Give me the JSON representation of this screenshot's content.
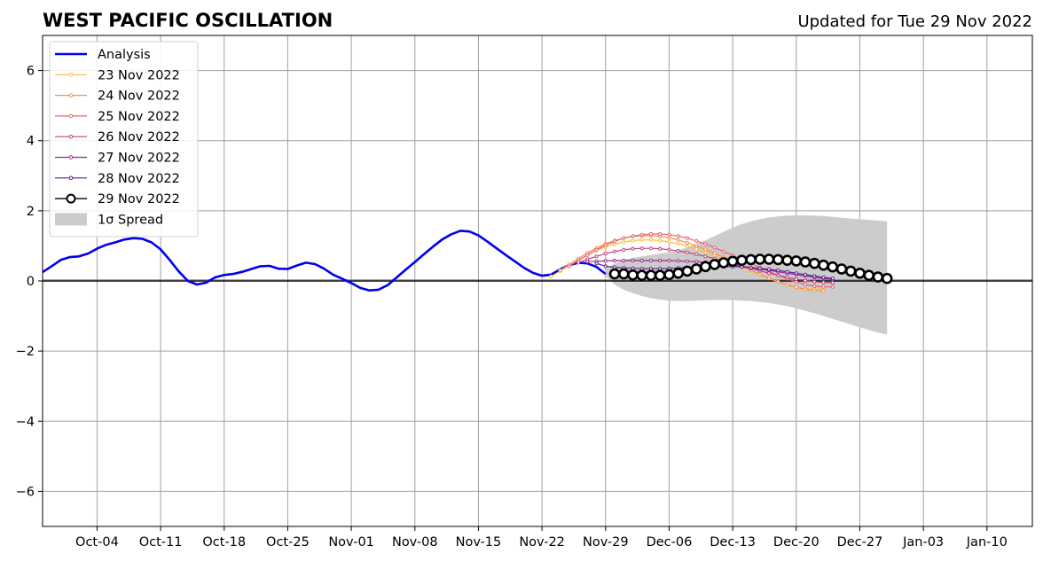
{
  "chart_data": {
    "type": "line",
    "title": "WEST PACIFIC OSCILLATION",
    "subtitle": "Updated for Tue 29 Nov 2022",
    "xlabel": "",
    "ylabel": "",
    "xlim": [
      "2022-09-28",
      "2023-01-15"
    ],
    "ylim": [
      -7,
      7
    ],
    "grid": true,
    "legend_position": "top-left",
    "x_ticks": [
      {
        "date": "2022-10-04",
        "label": "Oct-04"
      },
      {
        "date": "2022-10-11",
        "label": "Oct-11"
      },
      {
        "date": "2022-10-18",
        "label": "Oct-18"
      },
      {
        "date": "2022-10-25",
        "label": "Oct-25"
      },
      {
        "date": "2022-11-01",
        "label": "Nov-01"
      },
      {
        "date": "2022-11-08",
        "label": "Nov-08"
      },
      {
        "date": "2022-11-15",
        "label": "Nov-15"
      },
      {
        "date": "2022-11-22",
        "label": "Nov-22"
      },
      {
        "date": "2022-11-29",
        "label": "Nov-29"
      },
      {
        "date": "2022-12-06",
        "label": "Dec-06"
      },
      {
        "date": "2022-12-13",
        "label": "Dec-13"
      },
      {
        "date": "2022-12-20",
        "label": "Dec-20"
      },
      {
        "date": "2022-12-27",
        "label": "Dec-27"
      },
      {
        "date": "2023-01-03",
        "label": "Jan-03"
      },
      {
        "date": "2023-01-10",
        "label": "Jan-10"
      }
    ],
    "y_ticks": [
      {
        "value": 6,
        "label": "6"
      },
      {
        "value": 4,
        "label": "4"
      },
      {
        "value": 2,
        "label": "2"
      },
      {
        "value": 0,
        "label": "0"
      },
      {
        "value": -2,
        "label": "−2"
      },
      {
        "value": -4,
        "label": "−4"
      },
      {
        "value": -6,
        "label": "−6"
      }
    ],
    "analysis": {
      "name": "Analysis",
      "color": "#0000ee",
      "x_start": "2022-09-28",
      "values": [
        0.25,
        0.42,
        0.6,
        0.68,
        0.7,
        0.78,
        0.92,
        1.03,
        1.1,
        1.18,
        1.22,
        1.2,
        1.1,
        0.9,
        0.6,
        0.27,
        0.0,
        -0.1,
        -0.05,
        0.1,
        0.17,
        0.2,
        0.26,
        0.34,
        0.42,
        0.43,
        0.35,
        0.34,
        0.44,
        0.52,
        0.48,
        0.35,
        0.18,
        0.06,
        -0.06,
        -0.2,
        -0.27,
        -0.25,
        -0.12,
        0.1,
        0.32,
        0.54,
        0.76,
        0.98,
        1.18,
        1.33,
        1.43,
        1.41,
        1.3,
        1.12,
        0.93,
        0.74,
        0.56,
        0.38,
        0.23,
        0.15,
        0.18,
        0.33,
        0.45,
        0.52,
        0.5,
        0.4,
        0.2
      ]
    },
    "forecasts": [
      {
        "name": "23 Nov 2022",
        "color": "#fdbe3a",
        "x_start": "2022-11-23",
        "values": [
          0.13,
          0.28,
          0.44,
          0.6,
          0.74,
          0.87,
          0.97,
          1.05,
          1.11,
          1.15,
          1.17,
          1.17,
          1.15,
          1.11,
          1.06,
          0.99,
          0.91,
          0.82,
          0.72,
          0.61,
          0.5,
          0.39,
          0.28,
          0.17,
          0.07,
          -0.03,
          -0.11,
          -0.18,
          -0.22,
          -0.24,
          -0.22
        ]
      },
      {
        "name": "24 Nov 2022",
        "color": "#f98e52",
        "x_start": "2022-11-24",
        "values": [
          0.3,
          0.47,
          0.64,
          0.8,
          0.94,
          1.06,
          1.15,
          1.22,
          1.27,
          1.29,
          1.29,
          1.27,
          1.23,
          1.17,
          1.09,
          1.0,
          0.9,
          0.79,
          0.67,
          0.55,
          0.43,
          0.31,
          0.19,
          0.08,
          -0.02,
          -0.11,
          -0.18,
          -0.24,
          -0.27,
          -0.28
        ]
      },
      {
        "name": "25 Nov 2022",
        "color": "#e4636e",
        "x_start": "2022-11-25",
        "values": [
          0.42,
          0.58,
          0.74,
          0.89,
          1.02,
          1.13,
          1.22,
          1.28,
          1.32,
          1.34,
          1.34,
          1.32,
          1.28,
          1.22,
          1.14,
          1.05,
          0.95,
          0.84,
          0.73,
          0.62,
          0.5,
          0.38,
          0.27,
          0.16,
          0.06,
          -0.03,
          -0.1,
          -0.15,
          -0.17,
          -0.17
        ]
      },
      {
        "name": "26 Nov 2022",
        "color": "#c0437f",
        "x_start": "2022-11-26",
        "values": [
          0.52,
          0.62,
          0.7,
          0.78,
          0.84,
          0.89,
          0.92,
          0.93,
          0.93,
          0.92,
          0.89,
          0.86,
          0.81,
          0.76,
          0.7,
          0.64,
          0.57,
          0.5,
          0.43,
          0.36,
          0.29,
          0.22,
          0.16,
          0.1,
          0.05,
          0.01,
          -0.02,
          -0.04,
          -0.05
        ]
      },
      {
        "name": "27 Nov 2022",
        "color": "#952a95",
        "x_start": "2022-11-27",
        "values": [
          0.55,
          0.56,
          0.57,
          0.58,
          0.58,
          0.58,
          0.58,
          0.58,
          0.58,
          0.58,
          0.57,
          0.56,
          0.55,
          0.53,
          0.51,
          0.48,
          0.45,
          0.42,
          0.38,
          0.34,
          0.3,
          0.26,
          0.22,
          0.18,
          0.14,
          0.1,
          0.07,
          0.04
        ]
      },
      {
        "name": "28 Nov 2022",
        "color": "#5b1e8c",
        "x_start": "2022-11-28",
        "values": [
          0.5,
          0.42,
          0.39,
          0.37,
          0.36,
          0.35,
          0.35,
          0.35,
          0.36,
          0.37,
          0.38,
          0.39,
          0.4,
          0.41,
          0.41,
          0.41,
          0.4,
          0.38,
          0.36,
          0.33,
          0.3,
          0.26,
          0.22,
          0.18,
          0.14,
          0.1,
          0.07
        ]
      },
      {
        "name": "29 Nov 2022",
        "color": "#000000",
        "x_start": "2022-11-30",
        "values": [
          0.2,
          0.2,
          0.17,
          0.16,
          0.16,
          0.16,
          0.18,
          0.22,
          0.28,
          0.34,
          0.41,
          0.47,
          0.52,
          0.56,
          0.59,
          0.61,
          0.62,
          0.62,
          0.61,
          0.59,
          0.57,
          0.54,
          0.5,
          0.45,
          0.4,
          0.34,
          0.28,
          0.22,
          0.16,
          0.11,
          0.07
        ]
      }
    ],
    "spread": {
      "name": "1σ Spread",
      "color": "#cccccc",
      "x_start": "2022-11-29",
      "upper": [
        0.35,
        0.5,
        0.6,
        0.66,
        0.7,
        0.74,
        0.78,
        0.82,
        0.88,
        0.96,
        1.06,
        1.16,
        1.28,
        1.4,
        1.52,
        1.62,
        1.7,
        1.76,
        1.81,
        1.84,
        1.86,
        1.87,
        1.87,
        1.86,
        1.85,
        1.83,
        1.8,
        1.78,
        1.76,
        1.74,
        1.72,
        1.7
      ],
      "lower": [
        0.15,
        -0.1,
        -0.25,
        -0.35,
        -0.43,
        -0.49,
        -0.53,
        -0.56,
        -0.57,
        -0.57,
        -0.56,
        -0.55,
        -0.54,
        -0.54,
        -0.55,
        -0.56,
        -0.57,
        -0.6,
        -0.63,
        -0.67,
        -0.72,
        -0.78,
        -0.85,
        -0.92,
        -1.0,
        -1.08,
        -1.16,
        -1.24,
        -1.32,
        -1.4,
        -1.47,
        -1.53
      ]
    }
  }
}
